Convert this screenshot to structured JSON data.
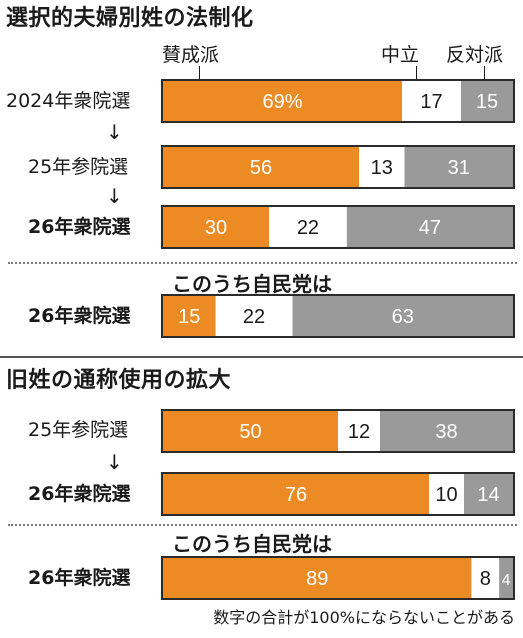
{
  "colors": {
    "support": "#ec8a24",
    "neutral": "#ffffff",
    "oppose": "#9a9a9a",
    "frame": "#2b2b2b"
  },
  "section1": {
    "title": "選択的夫婦別姓の法制化"
  },
  "section2": {
    "title": "旧姓の通称使用の拡大"
  },
  "legend": {
    "support": "賛成派",
    "neutral": "中立",
    "oppose": "反対派"
  },
  "subgroup_label": "このうち自民党は",
  "arrow_glyph": "↓",
  "footnote": "数字の合計が100%にならないことがある",
  "chart_data": [
    {
      "type": "bar",
      "title": "選択的夫婦別姓の法制化",
      "categories": [
        "2024年衆院選",
        "25年参院選",
        "26年衆院選",
        "26年衆院選"
      ],
      "subtitle": "このうち自民党は",
      "series": [
        {
          "name": "賛成派",
          "values": [
            69,
            56,
            30,
            15
          ]
        },
        {
          "name": "中立",
          "values": [
            17,
            13,
            22,
            22
          ]
        },
        {
          "name": "反対派",
          "values": [
            15,
            31,
            47,
            63
          ]
        }
      ],
      "value_labels": [
        [
          "69%",
          "17",
          "15"
        ],
        [
          "56",
          "13",
          "31"
        ],
        [
          "30",
          "22",
          "47"
        ],
        [
          "15",
          "22",
          "63"
        ]
      ]
    },
    {
      "type": "bar",
      "title": "旧姓の通称使用の拡大",
      "categories": [
        "25年参院選",
        "26年衆院選",
        "26年衆院選"
      ],
      "subtitle": "このうち自民党は",
      "series": [
        {
          "name": "賛成派",
          "values": [
            50,
            76,
            89
          ]
        },
        {
          "name": "中立",
          "values": [
            12,
            10,
            8
          ]
        },
        {
          "name": "反対派",
          "values": [
            38,
            14,
            4
          ]
        }
      ],
      "value_labels": [
        [
          "50",
          "12",
          "38"
        ],
        [
          "76",
          "10",
          "14"
        ],
        [
          "89",
          "8",
          "4"
        ]
      ]
    }
  ]
}
